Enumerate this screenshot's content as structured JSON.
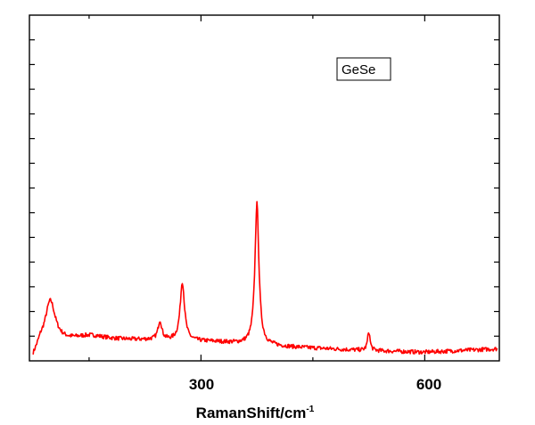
{
  "chart_data": {
    "type": "line",
    "title": "",
    "xlabel": "RamanShift/cm",
    "xlabel_sup": "-1",
    "ylabel": "",
    "xlim": [
      70,
      700
    ],
    "ylim": [
      0,
      1
    ],
    "x_ticks": [
      300,
      600
    ],
    "x_tick_labels": [
      "300",
      "600"
    ],
    "y_tick_labels_shown": false,
    "grid": false,
    "legend": {
      "position": "top-right",
      "entries": [
        "GeSe"
      ]
    },
    "color": "#ff0000",
    "series": [
      {
        "name": "GeSe",
        "peaks": [
          {
            "center": 98,
            "height": 0.12,
            "width": 8
          },
          {
            "center": 150,
            "height": 0.013,
            "width": 25
          },
          {
            "center": 245,
            "height": 0.055,
            "width": 3
          },
          {
            "center": 275,
            "height": 0.17,
            "width": 3.5
          },
          {
            "center": 375,
            "height": 0.408,
            "width": 3.2
          },
          {
            "center": 525,
            "height": 0.055,
            "width": 2
          }
        ],
        "baseline": [
          [
            75,
            0.01
          ],
          [
            85,
            0.05
          ],
          [
            110,
            0.055
          ],
          [
            160,
            0.06
          ],
          [
            230,
            0.06
          ],
          [
            320,
            0.055
          ],
          [
            420,
            0.04
          ],
          [
            520,
            0.03
          ],
          [
            600,
            0.025
          ],
          [
            700,
            0.035
          ]
        ],
        "noise_amplitude": 0.006
      }
    ]
  }
}
